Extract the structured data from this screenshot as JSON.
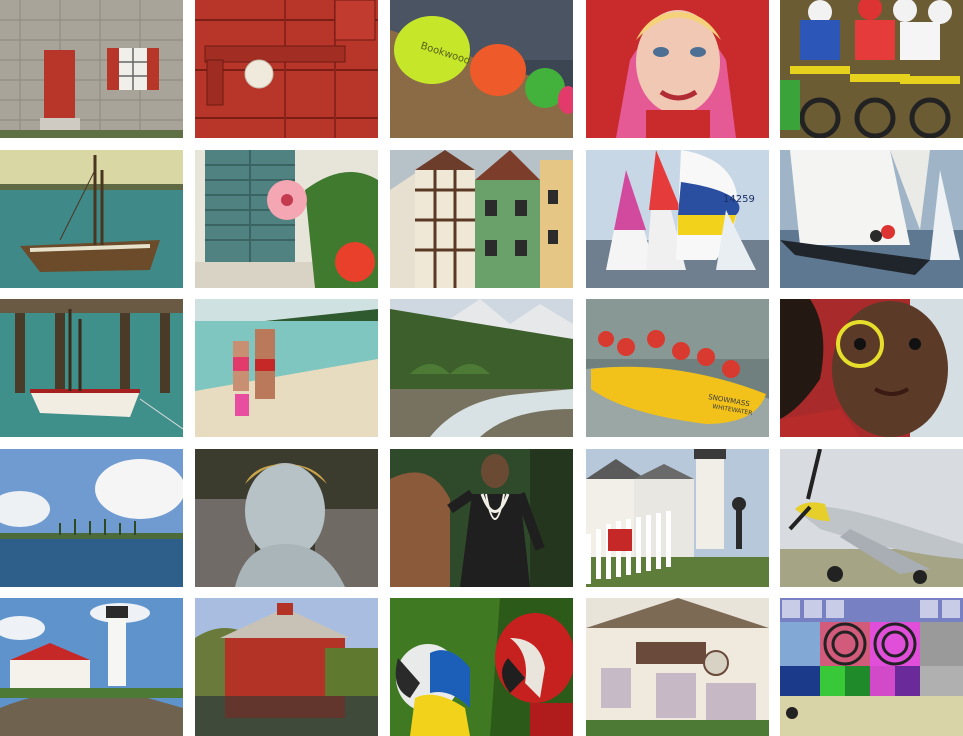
{
  "grid": {
    "rows": 5,
    "columns": 5,
    "tiles": [
      {
        "subject": "stone house with red door and shutters"
      },
      {
        "subject": "red painted door with latch and white knob"
      },
      {
        "subject": "row of colored caps on a fence",
        "text": "Bookwood"
      },
      {
        "subject": "woman in red hood"
      },
      {
        "subject": "motocross riders at start line"
      },
      {
        "subject": "sailboat at sea"
      },
      {
        "subject": "green shutters with hibiscus flowers"
      },
      {
        "subject": "half-timbered houses"
      },
      {
        "subject": "sailboats racing",
        "text": "14259"
      },
      {
        "subject": "sailboat with crew heeling"
      },
      {
        "subject": "old boat by wooden pier"
      },
      {
        "subject": "couple walking on beach"
      },
      {
        "subject": "mountain stream and forest"
      },
      {
        "subject": "whitewater rafting",
        "text": "SNOWMASS WHITEWATER"
      },
      {
        "subject": "child with face paint"
      },
      {
        "subject": "island with palm trees under clouds"
      },
      {
        "subject": "statue with laurel wreath"
      },
      {
        "subject": "woman with pearl necklace by rocks"
      },
      {
        "subject": "lighthouse with white fence"
      },
      {
        "subject": "P-51 Mustang airplane"
      },
      {
        "subject": "lighthouse on rocky coast"
      },
      {
        "subject": "red barn by pond"
      },
      {
        "subject": "two macaw parrots"
      },
      {
        "subject": "painted alpine house"
      },
      {
        "subject": "color and resolution test chart"
      }
    ]
  },
  "colors": {
    "background": "#ffffff",
    "red_door": "#b8352a",
    "sea": "#3f8a88",
    "sky": "#7aa6d6",
    "grass": "#4f7a33",
    "raft": "#f2c21b",
    "macaw_red": "#c7211f",
    "macaw_blue": "#1c5fb8"
  }
}
